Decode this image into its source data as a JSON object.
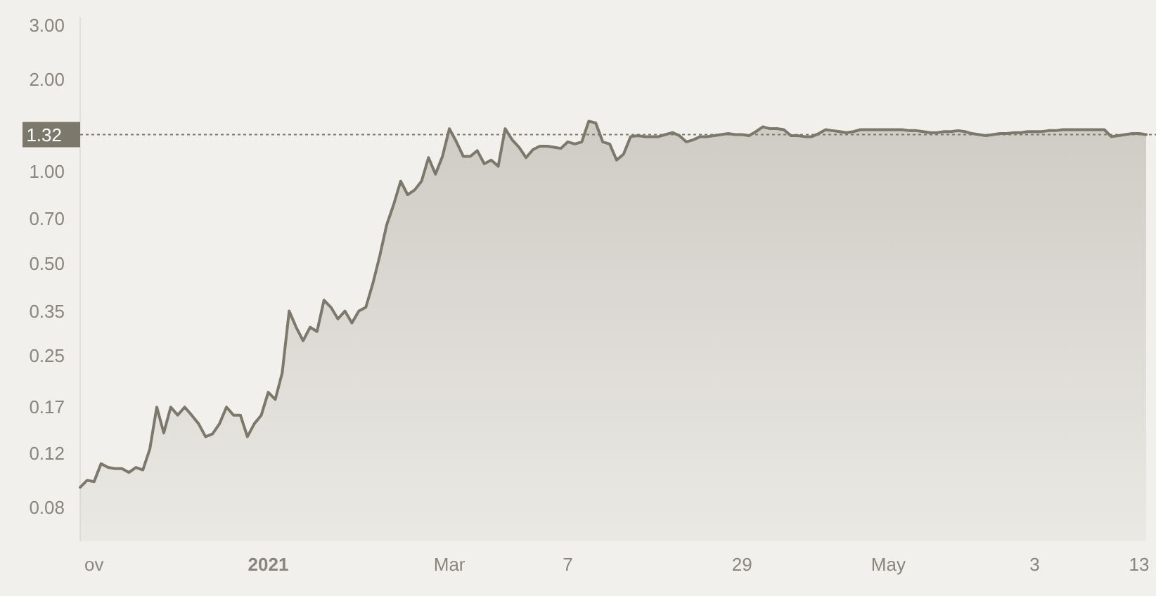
{
  "chart_data": {
    "type": "area",
    "log": true,
    "grid": false,
    "marker": "none",
    "line_style": "solid",
    "ylim": [
      0.062,
      3.2
    ],
    "yticks": [
      0.08,
      0.12,
      0.17,
      0.25,
      0.35,
      {
        "value": 0.5,
        "label": "0.50"
      },
      {
        "value": 0.7,
        "label": "0.70"
      },
      {
        "value": 1,
        "label": "1.00"
      },
      {
        "value": 2,
        "label": "2.00"
      },
      {
        "value": 3,
        "label": "3.00"
      }
    ],
    "categories": [
      null,
      null,
      "ov",
      null,
      null,
      null,
      null,
      null,
      null,
      null,
      null,
      null,
      null,
      null,
      null,
      null,
      null,
      null,
      null,
      null,
      null,
      null,
      null,
      null,
      null,
      null,
      null,
      "2021",
      null,
      null,
      null,
      null,
      null,
      null,
      null,
      null,
      null,
      null,
      null,
      null,
      null,
      null,
      null,
      null,
      null,
      null,
      null,
      null,
      null,
      null,
      null,
      null,
      null,
      "Mar",
      null,
      null,
      null,
      null,
      null,
      null,
      null,
      null,
      null,
      null,
      null,
      null,
      null,
      null,
      null,
      null,
      "7",
      null,
      null,
      null,
      null,
      null,
      null,
      null,
      null,
      null,
      null,
      null,
      null,
      null,
      null,
      null,
      null,
      null,
      null,
      null,
      null,
      null,
      null,
      null,
      null,
      "29",
      null,
      null,
      null,
      null,
      null,
      null,
      null,
      null,
      null,
      null,
      null,
      null,
      null,
      null,
      null,
      null,
      null,
      null,
      null,
      null,
      "May",
      null,
      null,
      null,
      null,
      null,
      null,
      null,
      null,
      null,
      null,
      null,
      null,
      null,
      null,
      null,
      null,
      null,
      null,
      null,
      null,
      "3",
      null,
      null,
      null,
      null,
      null,
      null,
      null,
      null,
      null,
      null,
      null,
      null,
      null,
      null,
      "13",
      null
    ],
    "ref_lines": [
      {
        "axis": "y",
        "value": 1.32,
        "label": "1.32",
        "color": "#7d786c",
        "line_style": "dotted"
      }
    ],
    "series": [
      {
        "color": "#7d786c",
        "values": [
          0.093,
          0.098,
          0.097,
          0.111,
          0.108,
          0.107,
          0.107,
          0.104,
          0.108,
          0.106,
          0.124,
          0.17,
          0.14,
          0.17,
          0.16,
          0.17,
          0.16,
          0.15,
          0.136,
          0.139,
          0.15,
          0.17,
          0.16,
          0.16,
          0.136,
          0.15,
          0.16,
          0.19,
          0.18,
          0.22,
          0.35,
          0.31,
          0.28,
          0.31,
          0.3,
          0.38,
          0.36,
          0.33,
          0.35,
          0.32,
          0.35,
          0.36,
          0.43,
          0.53,
          0.67,
          0.78,
          0.93,
          0.84,
          0.87,
          0.93,
          1.11,
          0.98,
          1.12,
          1.38,
          1.25,
          1.12,
          1.12,
          1.17,
          1.06,
          1.09,
          1.04,
          1.38,
          1.27,
          1.2,
          1.11,
          1.18,
          1.21,
          1.21,
          1.2,
          1.19,
          1.25,
          1.23,
          1.25,
          1.46,
          1.44,
          1.25,
          1.23,
          1.09,
          1.14,
          1.3,
          1.31,
          1.3,
          1.3,
          1.3,
          1.32,
          1.34,
          1.31,
          1.25,
          1.27,
          1.3,
          1.3,
          1.31,
          1.32,
          1.33,
          1.32,
          1.32,
          1.31,
          1.35,
          1.4,
          1.38,
          1.38,
          1.37,
          1.31,
          1.31,
          1.3,
          1.3,
          1.33,
          1.37,
          1.36,
          1.35,
          1.34,
          1.35,
          1.37,
          1.37,
          1.37,
          1.37,
          1.37,
          1.37,
          1.37,
          1.36,
          1.36,
          1.35,
          1.34,
          1.34,
          1.35,
          1.35,
          1.36,
          1.35,
          1.33,
          1.32,
          1.31,
          1.32,
          1.33,
          1.33,
          1.34,
          1.34,
          1.35,
          1.35,
          1.35,
          1.36,
          1.36,
          1.37,
          1.37,
          1.37,
          1.37,
          1.37,
          1.37,
          1.37,
          1.3,
          1.31,
          1.32,
          1.33,
          1.33,
          1.32
        ]
      }
    ]
  }
}
